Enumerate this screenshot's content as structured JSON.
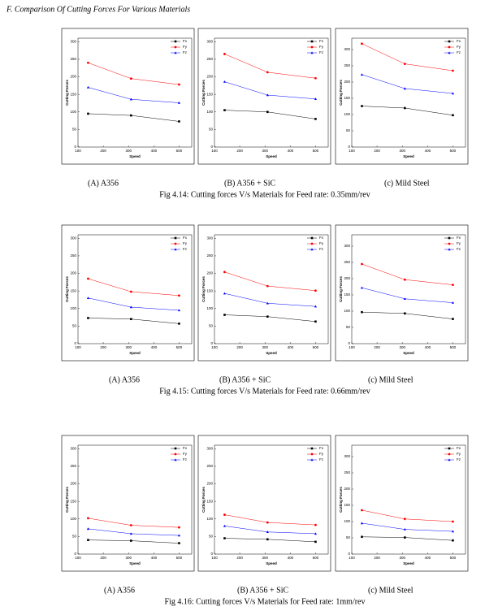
{
  "heading": "F.    Comparison  Of Cutting Forces For Various Materials",
  "figures": [
    {
      "panels": [
        "(A)      A356",
        "(B) A356 + SiC",
        "(c) Mild Steel"
      ],
      "caption": "Fig 4.14: Cutting forces V/s Materials for Feed rate: 0.35mm/rev"
    },
    {
      "panels": [
        "(A)  A356",
        "(B) A356 + SiC",
        "(c) Mild Steel"
      ],
      "caption": "Fig 4.15: Cutting forces V/s Materials for Feed rate: 0.66mm/rev"
    },
    {
      "panels": [
        "(A) A356",
        "(B) A356 + SiC",
        "(c) Mild Steel"
      ],
      "caption": "Fig 4.16: Cutting forces V/s Materials for Feed rate: 1mm/rev"
    }
  ],
  "chart_data": [
    {
      "type": "line",
      "xlabel": "Speed",
      "ylabel": "Cutting Forces",
      "x": [
        140,
        310,
        500
      ],
      "xlim": [
        100,
        550
      ],
      "xticks": [
        100,
        200,
        300,
        400,
        500
      ],
      "ylim": [
        0,
        310
      ],
      "yticks": [
        0,
        50,
        100,
        150,
        200,
        250,
        300
      ],
      "legend": "upper right",
      "series": [
        {
          "name": "Fx",
          "color": "#000000",
          "marker": "square",
          "values": [
            95,
            90,
            73
          ]
        },
        {
          "name": "Fy",
          "color": "#ff0000",
          "marker": "circle",
          "values": [
            240,
            195,
            178
          ]
        },
        {
          "name": "Fz",
          "color": "#0000ff",
          "marker": "triangle",
          "values": [
            170,
            136,
            126
          ]
        }
      ]
    },
    {
      "type": "line",
      "xlabel": "Speed",
      "ylabel": "Cutting Forces",
      "x": [
        140,
        310,
        500
      ],
      "xlim": [
        100,
        550
      ],
      "xticks": [
        100,
        200,
        300,
        400,
        500
      ],
      "ylim": [
        0,
        310
      ],
      "yticks": [
        0,
        50,
        100,
        150,
        200,
        250,
        300
      ],
      "legend": "upper right",
      "series": [
        {
          "name": "Fx",
          "color": "#000000",
          "marker": "square",
          "values": [
            105,
            100,
            80
          ]
        },
        {
          "name": "Fy",
          "color": "#ff0000",
          "marker": "circle",
          "values": [
            265,
            213,
            196
          ]
        },
        {
          "name": "Fz",
          "color": "#0000ff",
          "marker": "triangle",
          "values": [
            186,
            148,
            137
          ]
        }
      ]
    },
    {
      "type": "line",
      "xlabel": "Speed",
      "ylabel": "Cutting Forces",
      "x": [
        140,
        310,
        500
      ],
      "xlim": [
        100,
        550
      ],
      "xticks": [
        100,
        200,
        300,
        400,
        500
      ],
      "ylim": [
        0,
        335
      ],
      "yticks": [
        0,
        50,
        100,
        150,
        200,
        250,
        300
      ],
      "legend": "upper right",
      "series": [
        {
          "name": "Fx",
          "color": "#000000",
          "marker": "square",
          "values": [
            126,
            120,
            98
          ]
        },
        {
          "name": "Fy",
          "color": "#ff0000",
          "marker": "circle",
          "values": [
            318,
            256,
            235
          ]
        },
        {
          "name": "Fz",
          "color": "#0000ff",
          "marker": "triangle",
          "values": [
            223,
            180,
            165
          ]
        }
      ]
    },
    {
      "type": "line",
      "xlabel": "Speed",
      "ylabel": "Cutting Forces",
      "x": [
        140,
        310,
        500
      ],
      "xlim": [
        100,
        550
      ],
      "xticks": [
        100,
        200,
        300,
        400,
        500
      ],
      "ylim": [
        0,
        310
      ],
      "yticks": [
        0,
        50,
        100,
        150,
        200,
        250,
        300
      ],
      "legend": "upper right",
      "series": [
        {
          "name": "Fx",
          "color": "#000000",
          "marker": "square",
          "values": [
            73,
            70,
            57
          ]
        },
        {
          "name": "Fy",
          "color": "#ff0000",
          "marker": "circle",
          "values": [
            185,
            148,
            137
          ]
        },
        {
          "name": "Fz",
          "color": "#0000ff",
          "marker": "triangle",
          "values": [
            130,
            104,
            95
          ]
        }
      ]
    },
    {
      "type": "line",
      "xlabel": "Speed",
      "ylabel": "Cutting Forces",
      "x": [
        140,
        310,
        500
      ],
      "xlim": [
        100,
        550
      ],
      "xticks": [
        100,
        200,
        300,
        400,
        500
      ],
      "ylim": [
        0,
        310
      ],
      "yticks": [
        0,
        50,
        100,
        150,
        200,
        250,
        300
      ],
      "legend": "upper right",
      "series": [
        {
          "name": "Fx",
          "color": "#000000",
          "marker": "square",
          "values": [
            82,
            77,
            63
          ]
        },
        {
          "name": "Fy",
          "color": "#ff0000",
          "marker": "circle",
          "values": [
            204,
            164,
            151
          ]
        },
        {
          "name": "Fz",
          "color": "#0000ff",
          "marker": "triangle",
          "values": [
            143,
            115,
            106
          ]
        }
      ]
    },
    {
      "type": "line",
      "xlabel": "Speed",
      "ylabel": "Cutting Forces",
      "x": [
        140,
        310,
        500
      ],
      "xlim": [
        100,
        550
      ],
      "xticks": [
        100,
        200,
        300,
        400,
        500
      ],
      "ylim": [
        0,
        335
      ],
      "yticks": [
        0,
        50,
        100,
        150,
        200,
        250,
        300
      ],
      "legend": "upper right",
      "series": [
        {
          "name": "Fx",
          "color": "#000000",
          "marker": "square",
          "values": [
            97,
            93,
            76
          ]
        },
        {
          "name": "Fy",
          "color": "#ff0000",
          "marker": "circle",
          "values": [
            245,
            197,
            181
          ]
        },
        {
          "name": "Fz",
          "color": "#0000ff",
          "marker": "triangle",
          "values": [
            172,
            138,
            126
          ]
        }
      ]
    },
    {
      "type": "line",
      "xlabel": "Speed",
      "ylabel": "Cutting Forces",
      "x": [
        140,
        310,
        500
      ],
      "xlim": [
        100,
        550
      ],
      "xticks": [
        100,
        200,
        300,
        400,
        500
      ],
      "ylim": [
        0,
        310
      ],
      "yticks": [
        0,
        50,
        100,
        150,
        200,
        250,
        300
      ],
      "legend": "upper right",
      "series": [
        {
          "name": "Fx",
          "color": "#000000",
          "marker": "square",
          "values": [
            40,
            38,
            31
          ]
        },
        {
          "name": "Fy",
          "color": "#ff0000",
          "marker": "circle",
          "values": [
            102,
            82,
            76
          ]
        },
        {
          "name": "Fz",
          "color": "#0000ff",
          "marker": "triangle",
          "values": [
            72,
            58,
            53
          ]
        }
      ]
    },
    {
      "type": "line",
      "xlabel": "Speed",
      "ylabel": "Cutting Forces",
      "x": [
        140,
        310,
        500
      ],
      "xlim": [
        100,
        550
      ],
      "xticks": [
        100,
        200,
        300,
        400,
        500
      ],
      "ylim": [
        0,
        310
      ],
      "yticks": [
        0,
        50,
        100,
        150,
        200,
        250,
        300
      ],
      "legend": "upper right",
      "series": [
        {
          "name": "Fx",
          "color": "#000000",
          "marker": "square",
          "values": [
            45,
            42,
            35
          ]
        },
        {
          "name": "Fy",
          "color": "#ff0000",
          "marker": "circle",
          "values": [
            112,
            90,
            83
          ]
        },
        {
          "name": "Fz",
          "color": "#0000ff",
          "marker": "triangle",
          "values": [
            80,
            63,
            58
          ]
        }
      ]
    },
    {
      "type": "line",
      "xlabel": "Speed",
      "ylabel": "Cutting Forces",
      "x": [
        140,
        310,
        500
      ],
      "xlim": [
        100,
        550
      ],
      "xticks": [
        100,
        200,
        300,
        400,
        500
      ],
      "ylim": [
        0,
        335
      ],
      "yticks": [
        0,
        50,
        100,
        150,
        200,
        250,
        300
      ],
      "legend": "upper right",
      "series": [
        {
          "name": "Fx",
          "color": "#000000",
          "marker": "square",
          "values": [
            53,
            51,
            42
          ]
        },
        {
          "name": "Fy",
          "color": "#ff0000",
          "marker": "circle",
          "values": [
            135,
            108,
            100
          ]
        },
        {
          "name": "Fz",
          "color": "#0000ff",
          "marker": "triangle",
          "values": [
            95,
            76,
            70
          ]
        }
      ]
    }
  ]
}
